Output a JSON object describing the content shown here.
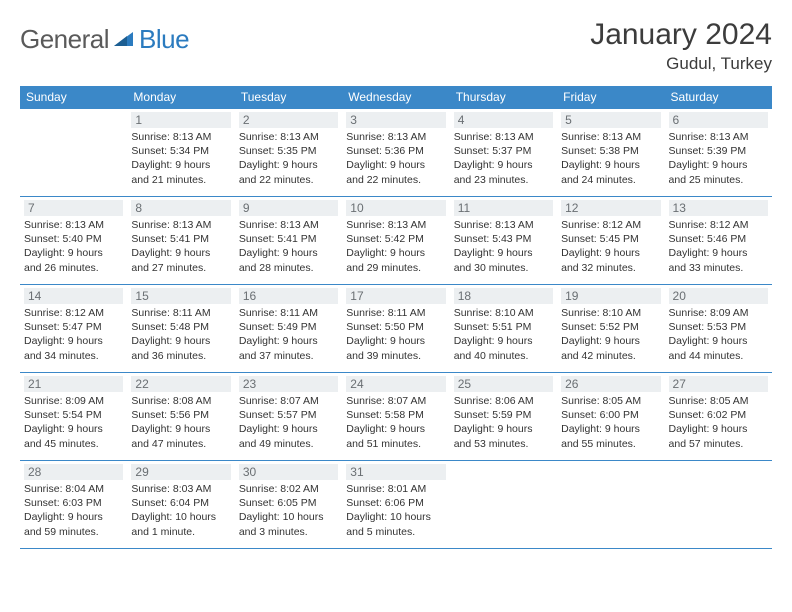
{
  "logo": {
    "general": "General",
    "blue": "Blue"
  },
  "title": {
    "month": "January 2024",
    "location": "Gudul, Turkey"
  },
  "colors": {
    "header_bg": "#3b88c8",
    "header_fg": "#ffffff",
    "daynum_bg": "#eceff1",
    "daynum_fg": "#6a6f73",
    "text": "#333333",
    "border": "#3b88c8",
    "logo_gray": "#5a5a5a",
    "logo_blue": "#2b7bbf"
  },
  "weekdays": [
    "Sunday",
    "Monday",
    "Tuesday",
    "Wednesday",
    "Thursday",
    "Friday",
    "Saturday"
  ],
  "weeks": [
    [
      null,
      {
        "n": "1",
        "sr": "Sunrise: 8:13 AM",
        "ss": "Sunset: 5:34 PM",
        "d1": "Daylight: 9 hours",
        "d2": "and 21 minutes."
      },
      {
        "n": "2",
        "sr": "Sunrise: 8:13 AM",
        "ss": "Sunset: 5:35 PM",
        "d1": "Daylight: 9 hours",
        "d2": "and 22 minutes."
      },
      {
        "n": "3",
        "sr": "Sunrise: 8:13 AM",
        "ss": "Sunset: 5:36 PM",
        "d1": "Daylight: 9 hours",
        "d2": "and 22 minutes."
      },
      {
        "n": "4",
        "sr": "Sunrise: 8:13 AM",
        "ss": "Sunset: 5:37 PM",
        "d1": "Daylight: 9 hours",
        "d2": "and 23 minutes."
      },
      {
        "n": "5",
        "sr": "Sunrise: 8:13 AM",
        "ss": "Sunset: 5:38 PM",
        "d1": "Daylight: 9 hours",
        "d2": "and 24 minutes."
      },
      {
        "n": "6",
        "sr": "Sunrise: 8:13 AM",
        "ss": "Sunset: 5:39 PM",
        "d1": "Daylight: 9 hours",
        "d2": "and 25 minutes."
      }
    ],
    [
      {
        "n": "7",
        "sr": "Sunrise: 8:13 AM",
        "ss": "Sunset: 5:40 PM",
        "d1": "Daylight: 9 hours",
        "d2": "and 26 minutes."
      },
      {
        "n": "8",
        "sr": "Sunrise: 8:13 AM",
        "ss": "Sunset: 5:41 PM",
        "d1": "Daylight: 9 hours",
        "d2": "and 27 minutes."
      },
      {
        "n": "9",
        "sr": "Sunrise: 8:13 AM",
        "ss": "Sunset: 5:41 PM",
        "d1": "Daylight: 9 hours",
        "d2": "and 28 minutes."
      },
      {
        "n": "10",
        "sr": "Sunrise: 8:13 AM",
        "ss": "Sunset: 5:42 PM",
        "d1": "Daylight: 9 hours",
        "d2": "and 29 minutes."
      },
      {
        "n": "11",
        "sr": "Sunrise: 8:13 AM",
        "ss": "Sunset: 5:43 PM",
        "d1": "Daylight: 9 hours",
        "d2": "and 30 minutes."
      },
      {
        "n": "12",
        "sr": "Sunrise: 8:12 AM",
        "ss": "Sunset: 5:45 PM",
        "d1": "Daylight: 9 hours",
        "d2": "and 32 minutes."
      },
      {
        "n": "13",
        "sr": "Sunrise: 8:12 AM",
        "ss": "Sunset: 5:46 PM",
        "d1": "Daylight: 9 hours",
        "d2": "and 33 minutes."
      }
    ],
    [
      {
        "n": "14",
        "sr": "Sunrise: 8:12 AM",
        "ss": "Sunset: 5:47 PM",
        "d1": "Daylight: 9 hours",
        "d2": "and 34 minutes."
      },
      {
        "n": "15",
        "sr": "Sunrise: 8:11 AM",
        "ss": "Sunset: 5:48 PM",
        "d1": "Daylight: 9 hours",
        "d2": "and 36 minutes."
      },
      {
        "n": "16",
        "sr": "Sunrise: 8:11 AM",
        "ss": "Sunset: 5:49 PM",
        "d1": "Daylight: 9 hours",
        "d2": "and 37 minutes."
      },
      {
        "n": "17",
        "sr": "Sunrise: 8:11 AM",
        "ss": "Sunset: 5:50 PM",
        "d1": "Daylight: 9 hours",
        "d2": "and 39 minutes."
      },
      {
        "n": "18",
        "sr": "Sunrise: 8:10 AM",
        "ss": "Sunset: 5:51 PM",
        "d1": "Daylight: 9 hours",
        "d2": "and 40 minutes."
      },
      {
        "n": "19",
        "sr": "Sunrise: 8:10 AM",
        "ss": "Sunset: 5:52 PM",
        "d1": "Daylight: 9 hours",
        "d2": "and 42 minutes."
      },
      {
        "n": "20",
        "sr": "Sunrise: 8:09 AM",
        "ss": "Sunset: 5:53 PM",
        "d1": "Daylight: 9 hours",
        "d2": "and 44 minutes."
      }
    ],
    [
      {
        "n": "21",
        "sr": "Sunrise: 8:09 AM",
        "ss": "Sunset: 5:54 PM",
        "d1": "Daylight: 9 hours",
        "d2": "and 45 minutes."
      },
      {
        "n": "22",
        "sr": "Sunrise: 8:08 AM",
        "ss": "Sunset: 5:56 PM",
        "d1": "Daylight: 9 hours",
        "d2": "and 47 minutes."
      },
      {
        "n": "23",
        "sr": "Sunrise: 8:07 AM",
        "ss": "Sunset: 5:57 PM",
        "d1": "Daylight: 9 hours",
        "d2": "and 49 minutes."
      },
      {
        "n": "24",
        "sr": "Sunrise: 8:07 AM",
        "ss": "Sunset: 5:58 PM",
        "d1": "Daylight: 9 hours",
        "d2": "and 51 minutes."
      },
      {
        "n": "25",
        "sr": "Sunrise: 8:06 AM",
        "ss": "Sunset: 5:59 PM",
        "d1": "Daylight: 9 hours",
        "d2": "and 53 minutes."
      },
      {
        "n": "26",
        "sr": "Sunrise: 8:05 AM",
        "ss": "Sunset: 6:00 PM",
        "d1": "Daylight: 9 hours",
        "d2": "and 55 minutes."
      },
      {
        "n": "27",
        "sr": "Sunrise: 8:05 AM",
        "ss": "Sunset: 6:02 PM",
        "d1": "Daylight: 9 hours",
        "d2": "and 57 minutes."
      }
    ],
    [
      {
        "n": "28",
        "sr": "Sunrise: 8:04 AM",
        "ss": "Sunset: 6:03 PM",
        "d1": "Daylight: 9 hours",
        "d2": "and 59 minutes."
      },
      {
        "n": "29",
        "sr": "Sunrise: 8:03 AM",
        "ss": "Sunset: 6:04 PM",
        "d1": "Daylight: 10 hours",
        "d2": "and 1 minute."
      },
      {
        "n": "30",
        "sr": "Sunrise: 8:02 AM",
        "ss": "Sunset: 6:05 PM",
        "d1": "Daylight: 10 hours",
        "d2": "and 3 minutes."
      },
      {
        "n": "31",
        "sr": "Sunrise: 8:01 AM",
        "ss": "Sunset: 6:06 PM",
        "d1": "Daylight: 10 hours",
        "d2": "and 5 minutes."
      },
      null,
      null,
      null
    ]
  ]
}
